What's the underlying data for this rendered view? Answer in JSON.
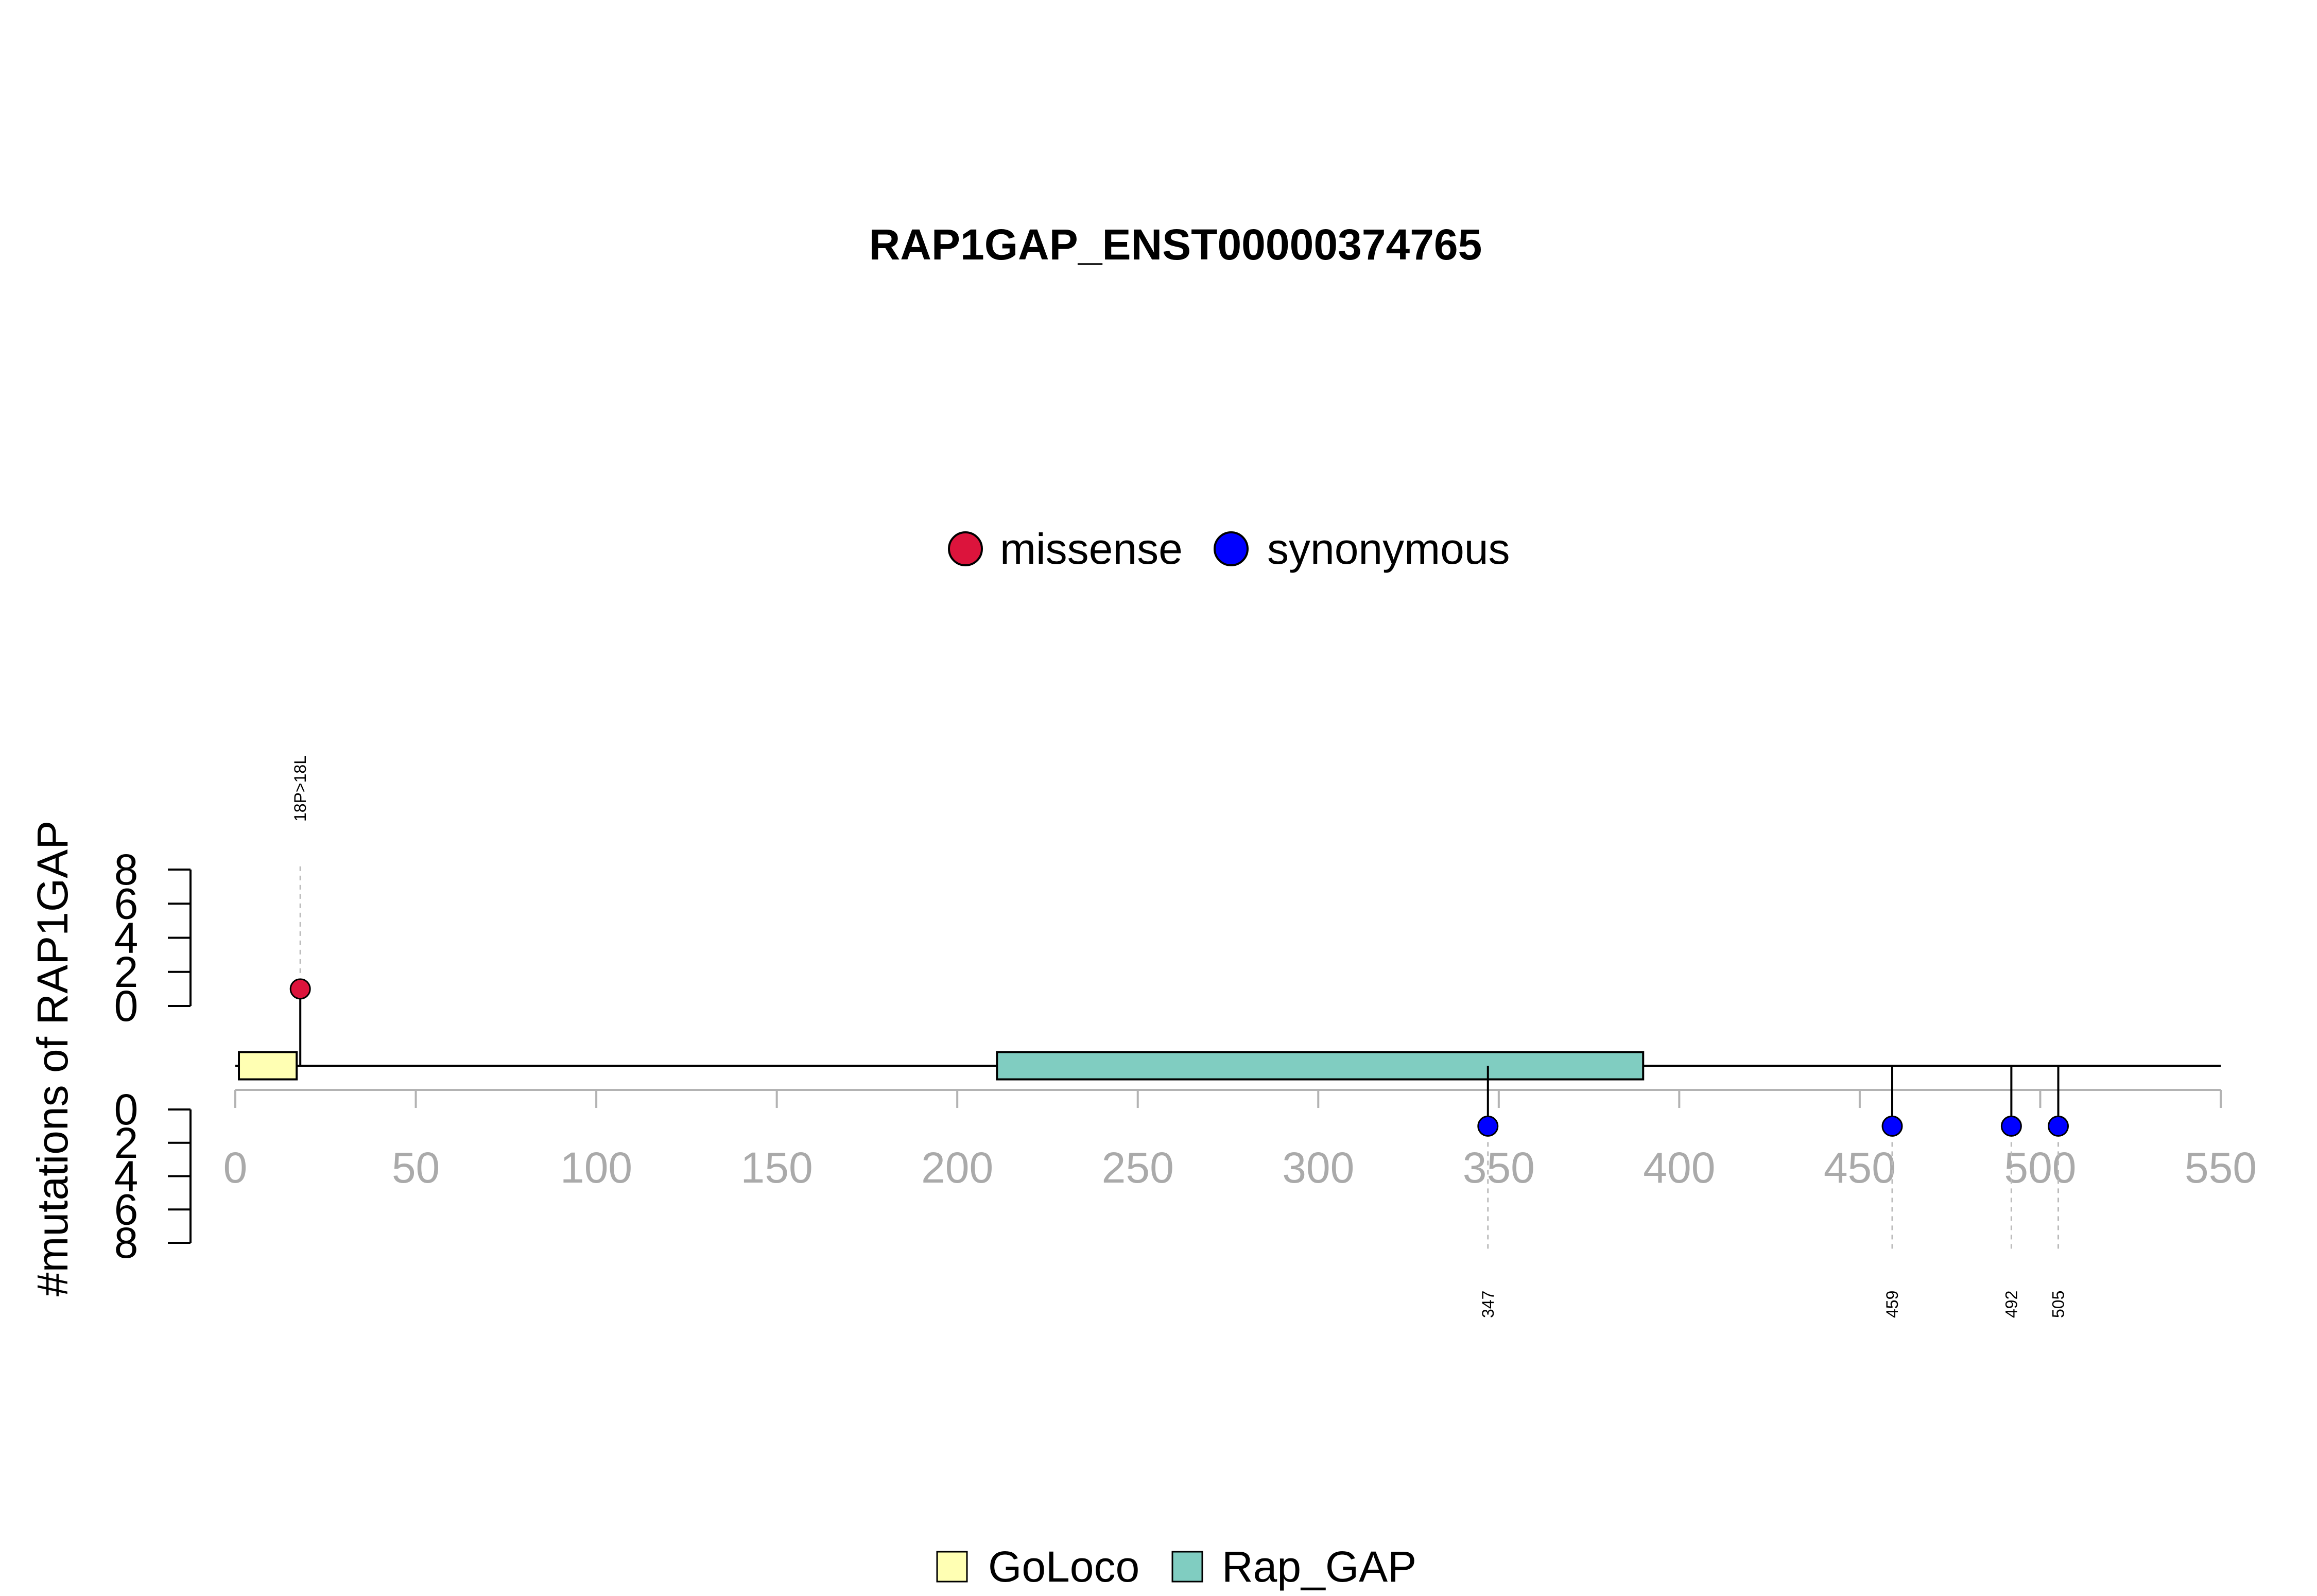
{
  "chart_data": {
    "type": "scatter",
    "title": "RAP1GAP_ENST00000374765",
    "ylabel": "#mutations of RAP1GAP",
    "xlim": [
      0,
      550
    ],
    "x_ticks": [
      0,
      50,
      100,
      150,
      200,
      250,
      300,
      350,
      400,
      450,
      500,
      550
    ],
    "grid": false,
    "legend": {
      "mutation_types": "top",
      "domains": "bottom"
    },
    "backbone": [
      0,
      550
    ],
    "domains": [
      {
        "name": "GoLoco",
        "start": 1,
        "end": 17,
        "color": "#FFFFB3"
      },
      {
        "name": "Rap_GAP",
        "start": 211,
        "end": 390,
        "color": "#80CDC1"
      }
    ],
    "upper_track": {
      "y_range": [
        0,
        8
      ],
      "y_ticks": [
        0,
        2,
        4,
        6,
        8
      ],
      "series": [
        {
          "name": "missense",
          "color": "#DC143C",
          "points": [
            {
              "x": 18,
              "y": 1,
              "label": "18P>18L"
            }
          ]
        }
      ]
    },
    "lower_track": {
      "y_range": [
        0,
        8
      ],
      "y_ticks": [
        0,
        2,
        4,
        6,
        8
      ],
      "series": [
        {
          "name": "synonymous",
          "color": "#0000FF",
          "points": [
            {
              "x": 347,
              "y": 1,
              "label": "347"
            },
            {
              "x": 459,
              "y": 1,
              "label": "459"
            },
            {
              "x": 492,
              "y": 1,
              "label": "492"
            },
            {
              "x": 505,
              "y": 1,
              "label": "505"
            }
          ]
        }
      ]
    }
  }
}
